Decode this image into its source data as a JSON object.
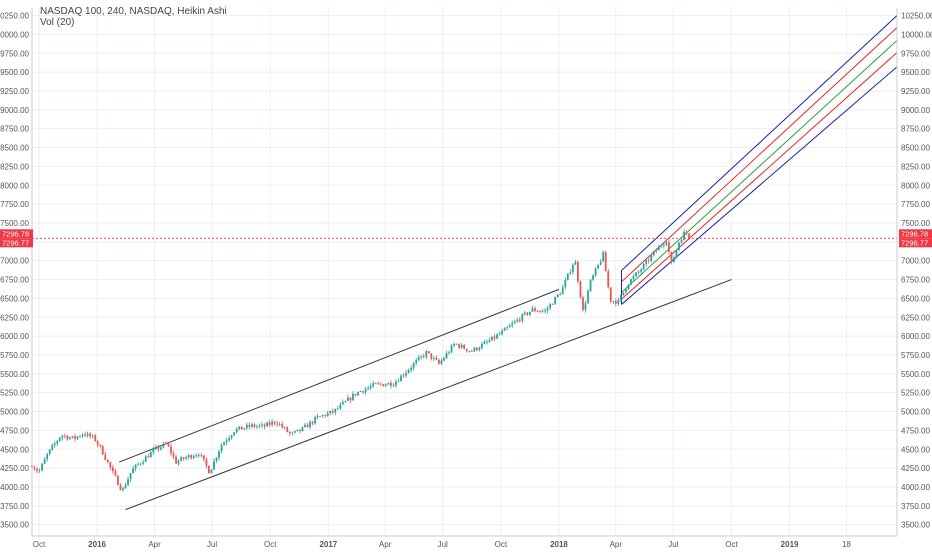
{
  "header": {
    "title": "NASDAQ 100, 240, NASDAQ, Heikin Ashi",
    "volume": "Vol (20)"
  },
  "colors": {
    "up": "#26a69a",
    "down": "#ef5350",
    "price_marker": "#f23645",
    "grid": "#e9eff3",
    "trend_line": "#333333",
    "pitchfork_outer": "#1f1fa8",
    "pitchfork_red": "#e0262b",
    "pitchfork_green": "#2ea043"
  },
  "chart_data": {
    "type": "candlestick",
    "title": "NASDAQ 100, 240, NASDAQ, Heikin Ashi",
    "indicator": "Vol (20)",
    "x_range": [
      "2015-09-20",
      "2019-06-20"
    ],
    "y_range": [
      3350,
      10350
    ],
    "y_axis": {
      "ticks": [
        3500,
        3750,
        4000,
        4250,
        4500,
        4750,
        5000,
        5250,
        5500,
        5750,
        6000,
        6250,
        6500,
        6750,
        7000,
        7250,
        7500,
        7750,
        8000,
        8250,
        8500,
        8750,
        9000,
        9250,
        9500,
        9750,
        10000,
        10250
      ],
      "tick_labels": [
        "3500.00",
        "3750.00",
        "4000.00",
        "4250.00",
        "4500.00",
        "4750.00",
        "5000.00",
        "5250.00",
        "5500.00",
        "5750.00",
        "6000.00",
        "6250.00",
        "6500.00",
        "6750.00",
        "7000.00",
        "7250.00",
        "7500.00",
        "7750.00",
        "8000.00",
        "8250.00",
        "8500.00",
        "8750.00",
        "9000.00",
        "9250.00",
        "9500.00",
        "9750.00",
        "10000.00",
        "10250.00"
      ]
    },
    "x_axis": {
      "ticks": [
        {
          "date": "2015-10-01",
          "label": "Oct",
          "bold": false
        },
        {
          "date": "2016-01-01",
          "label": "2016",
          "bold": true
        },
        {
          "date": "2016-04-01",
          "label": "Apr",
          "bold": false
        },
        {
          "date": "2016-07-01",
          "label": "Jul",
          "bold": false
        },
        {
          "date": "2016-10-01",
          "label": "Oct",
          "bold": false
        },
        {
          "date": "2017-01-01",
          "label": "2017",
          "bold": true
        },
        {
          "date": "2017-04-01",
          "label": "Apr",
          "bold": false
        },
        {
          "date": "2017-07-01",
          "label": "Jul",
          "bold": false
        },
        {
          "date": "2017-10-01",
          "label": "Oct",
          "bold": false
        },
        {
          "date": "2018-01-01",
          "label": "2018",
          "bold": true
        },
        {
          "date": "2018-04-01",
          "label": "Apr",
          "bold": false
        },
        {
          "date": "2018-07-01",
          "label": "Jul",
          "bold": false
        },
        {
          "date": "2018-10-01",
          "label": "Oct",
          "bold": false
        },
        {
          "date": "2019-01-01",
          "label": "2019",
          "bold": true
        },
        {
          "date": "2019-04-01",
          "label": "18",
          "bold": false
        }
      ]
    },
    "last_price": {
      "value": 7296.78,
      "labels": [
        "7296.78",
        "7296.77"
      ]
    },
    "price_path": [
      [
        "2015-09-20",
        4290
      ],
      [
        "2015-10-01",
        4200
      ],
      [
        "2015-10-15",
        4440
      ],
      [
        "2015-11-05",
        4690
      ],
      [
        "2015-11-25",
        4640
      ],
      [
        "2015-12-10",
        4710
      ],
      [
        "2015-12-28",
        4640
      ],
      [
        "2016-01-10",
        4460
      ],
      [
        "2016-01-25",
        4200
      ],
      [
        "2016-02-10",
        3950
      ],
      [
        "2016-02-25",
        4220
      ],
      [
        "2016-03-15",
        4370
      ],
      [
        "2016-04-01",
        4490
      ],
      [
        "2016-04-20",
        4570
      ],
      [
        "2016-05-05",
        4330
      ],
      [
        "2016-05-20",
        4390
      ],
      [
        "2016-06-10",
        4450
      ],
      [
        "2016-06-27",
        4200
      ],
      [
        "2016-07-15",
        4550
      ],
      [
        "2016-08-05",
        4750
      ],
      [
        "2016-09-01",
        4810
      ],
      [
        "2016-09-20",
        4800
      ],
      [
        "2016-10-10",
        4870
      ],
      [
        "2016-11-03",
        4690
      ],
      [
        "2016-11-20",
        4760
      ],
      [
        "2016-12-15",
        4920
      ],
      [
        "2017-01-10",
        5000
      ],
      [
        "2017-02-15",
        5250
      ],
      [
        "2017-03-15",
        5350
      ],
      [
        "2017-04-15",
        5380
      ],
      [
        "2017-05-10",
        5580
      ],
      [
        "2017-06-05",
        5780
      ],
      [
        "2017-06-25",
        5630
      ],
      [
        "2017-07-20",
        5900
      ],
      [
        "2017-08-15",
        5800
      ],
      [
        "2017-09-10",
        5920
      ],
      [
        "2017-10-05",
        6060
      ],
      [
        "2017-10-30",
        6230
      ],
      [
        "2017-11-20",
        6350
      ],
      [
        "2017-12-10",
        6330
      ],
      [
        "2018-01-05",
        6600
      ],
      [
        "2018-01-26",
        7020
      ],
      [
        "2018-02-08",
        6330
      ],
      [
        "2018-02-20",
        6720
      ],
      [
        "2018-03-12",
        7080
      ],
      [
        "2018-03-23",
        6480
      ],
      [
        "2018-04-05",
        6450
      ],
      [
        "2018-04-20",
        6700
      ],
      [
        "2018-05-10",
        6880
      ],
      [
        "2018-06-05",
        7150
      ],
      [
        "2018-06-20",
        7280
      ],
      [
        "2018-06-28",
        6950
      ],
      [
        "2018-07-10",
        7250
      ],
      [
        "2018-07-20",
        7390
      ],
      [
        "2018-07-27",
        7300
      ]
    ],
    "trend_channel": {
      "upper": [
        [
          "2016-02-05",
          4330
        ],
        [
          "2018-01-01",
          6620
        ]
      ],
      "lower": [
        [
          "2016-02-15",
          3700
        ],
        [
          "2018-10-01",
          6750
        ]
      ]
    },
    "pitchfork": {
      "lines": [
        {
          "name": "upper",
          "color": "outer",
          "start": [
            "2018-04-10",
            6870
          ],
          "end": [
            "2019-06-20",
            10250
          ]
        },
        {
          "name": "upper-mid",
          "color": "red",
          "start": [
            "2018-04-10",
            6720
          ],
          "end": [
            "2019-06-20",
            10090
          ]
        },
        {
          "name": "median",
          "color": "green",
          "start": [
            "2018-04-10",
            6580
          ],
          "end": [
            "2019-06-20",
            9920
          ]
        },
        {
          "name": "lower-mid",
          "color": "red",
          "start": [
            "2018-04-10",
            6490
          ],
          "end": [
            "2019-06-20",
            9760
          ]
        },
        {
          "name": "lower",
          "color": "outer",
          "start": [
            "2018-04-10",
            6420
          ],
          "end": [
            "2019-06-20",
            9570
          ]
        }
      ]
    }
  }
}
